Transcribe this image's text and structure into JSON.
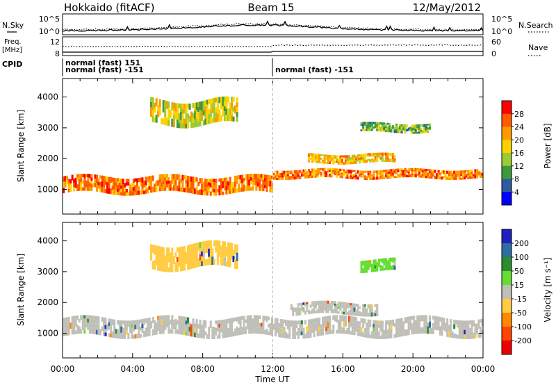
{
  "header": {
    "station": "Hokkaido (fitACF)",
    "beam": "Beam 15",
    "date": "12/May/2012"
  },
  "noise_panel": {
    "left_label": "N.Sky",
    "right_label": "N.Search",
    "ticks": [
      "10^5",
      "10^0"
    ]
  },
  "freq_panel": {
    "left_label_1": "Freq.",
    "left_label_2": "[MHz]",
    "left_ticks": [
      "12",
      "8"
    ],
    "right_label": "Nave",
    "right_ticks": [
      "60",
      "0"
    ]
  },
  "cpid": {
    "label": "CPID",
    "segments": [
      "normal (fast) 151",
      "normal (fast) -151",
      "normal (fast) -151"
    ]
  },
  "x_axis": {
    "title": "Time UT",
    "ticks": [
      "00:00",
      "04:00",
      "08:00",
      "12:00",
      "16:00",
      "20:00",
      "00:00"
    ]
  },
  "power_scale": {
    "title": "Power [dB]",
    "ticks": [
      "28",
      "24",
      "20",
      "16",
      "12",
      "8",
      "4"
    ],
    "colors": [
      "#ff0000",
      "#ff5a00",
      "#ff9a00",
      "#ffd200",
      "#9acd32",
      "#3c9a3c",
      "#2d5aa0",
      "#0000ff"
    ]
  },
  "velocity_scale": {
    "title": "Velocity [m s⁻¹]",
    "ticks": [
      "200",
      "100",
      "50",
      "15",
      "-15",
      "-50",
      "-100",
      "-200"
    ],
    "colors": [
      "#2020c0",
      "#2e6e9e",
      "#2e8b2e",
      "#66dd33",
      "#c0c0b8",
      "#ffcc44",
      "#ff8800",
      "#ff4400",
      "#ee0000"
    ]
  },
  "chart_data": [
    {
      "type": "heatmap",
      "title": "Power",
      "xlabel": "Time UT",
      "ylabel": "Slant Range [km]",
      "xlim": [
        0,
        24
      ],
      "ylim": [
        200,
        4600
      ],
      "x_ticks": [
        "00:00",
        "04:00",
        "08:00",
        "12:00",
        "16:00",
        "20:00",
        "00:00"
      ],
      "y_ticks": [
        1000,
        2000,
        3000,
        4000
      ],
      "colorbar": {
        "label": "Power [dB]",
        "range": [
          0,
          32
        ],
        "ticks": [
          4,
          8,
          12,
          16,
          20,
          24,
          28
        ]
      },
      "features": [
        {
          "t_start": 0,
          "t_end": 12,
          "range_center_km": 1150,
          "range_width_km": 550,
          "power_db": 26
        },
        {
          "t_start": 12,
          "t_end": 24,
          "range_center_km": 1500,
          "range_width_km": 300,
          "power_db": 24
        },
        {
          "t_start": 5,
          "t_end": 10,
          "range_center_km": 3500,
          "range_width_km": 800,
          "power_db": 15
        },
        {
          "t_start": 14,
          "t_end": 19,
          "range_center_km": 2000,
          "range_width_km": 300,
          "power_db": 22
        },
        {
          "t_start": 17,
          "t_end": 21,
          "range_center_km": 3000,
          "range_width_km": 300,
          "power_db": 14
        }
      ]
    },
    {
      "type": "heatmap",
      "title": "Velocity",
      "xlabel": "Time UT",
      "ylabel": "Slant Range [km]",
      "xlim": [
        0,
        24
      ],
      "ylim": [
        200,
        4600
      ],
      "x_ticks": [
        "00:00",
        "04:00",
        "08:00",
        "12:00",
        "16:00",
        "20:00",
        "00:00"
      ],
      "y_ticks": [
        1000,
        2000,
        3000,
        4000
      ],
      "colorbar": {
        "label": "Velocity [m s⁻¹]",
        "range": [
          -250,
          250
        ],
        "ticks": [
          200,
          100,
          50,
          15,
          -15,
          -50,
          -100,
          -200
        ]
      },
      "features": [
        {
          "t_start": 0,
          "t_end": 24,
          "range_center_km": 1200,
          "range_width_km": 600,
          "velocity": 0
        },
        {
          "t_start": 13,
          "t_end": 18,
          "range_center_km": 1800,
          "range_width_km": 400,
          "velocity": 30
        },
        {
          "t_start": 17,
          "t_end": 19,
          "range_center_km": 3200,
          "range_width_km": 400,
          "velocity": 40
        },
        {
          "t_start": 5,
          "t_end": 10,
          "range_center_km": 3500,
          "range_width_km": 800,
          "velocity": -60
        }
      ]
    }
  ]
}
